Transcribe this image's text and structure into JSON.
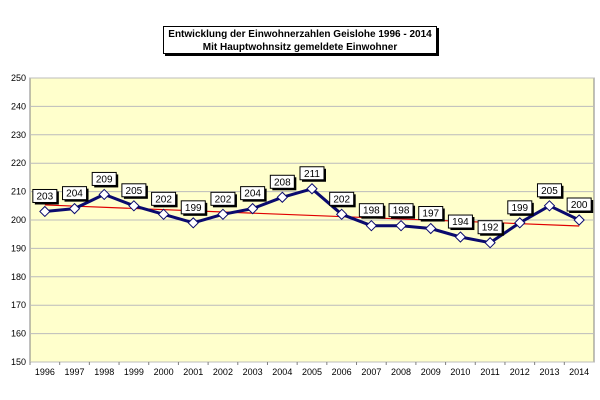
{
  "chart_data": {
    "type": "line",
    "title": "Entwicklung der Einwohnerzahlen Geislohe 1996 - 2014",
    "subtitle": "Mit Hauptwohnsitz gemeldete Einwohner",
    "categories": [
      "1996",
      "1997",
      "1998",
      "1999",
      "2000",
      "2001",
      "2002",
      "2003",
      "2004",
      "2005",
      "2006",
      "2007",
      "2008",
      "2009",
      "2010",
      "2011",
      "2012",
      "2013",
      "2014"
    ],
    "series": [
      {
        "values": [
          203,
          204,
          209,
          205,
          202,
          199,
          202,
          204,
          208,
          211,
          202,
          198,
          198,
          197,
          194,
          192,
          199,
          205,
          200
        ],
        "color": "#0a0a6e",
        "marker": "diamond"
      }
    ],
    "trendline": {
      "start": 205.3,
      "end": 197.9,
      "color": "#e00000"
    },
    "ylim": [
      150,
      250
    ],
    "yticks": [
      150,
      160,
      170,
      180,
      190,
      200,
      210,
      220,
      230,
      240,
      250
    ],
    "grid": true,
    "plot_background": "#ffffcc",
    "grid_color": "#bcbcbc"
  }
}
